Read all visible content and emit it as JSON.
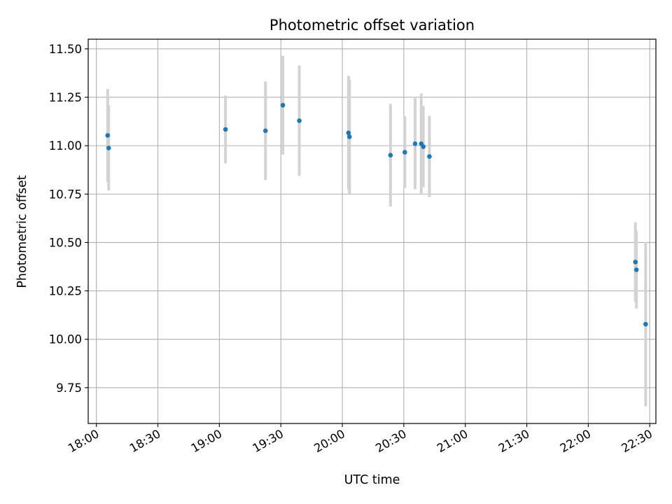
{
  "chart_data": {
    "type": "scatter",
    "title": "Photometric offset variation",
    "xlabel": "UTC time",
    "ylabel": "Photometric offset",
    "x_is_time": true,
    "xlim": [
      "17:56",
      "22:33"
    ],
    "ylim": [
      9.565,
      11.55
    ],
    "x_ticks": [
      "18:00",
      "18:30",
      "19:00",
      "19:30",
      "20:00",
      "20:30",
      "21:00",
      "21:30",
      "22:00",
      "22:30"
    ],
    "y_ticks": [
      9.75,
      10.0,
      10.25,
      10.5,
      10.75,
      11.0,
      11.25,
      11.5
    ],
    "y_tick_labels": [
      "9.75",
      "10.00",
      "10.25",
      "10.50",
      "10.75",
      "11.00",
      "11.25",
      "11.50"
    ],
    "grid": true,
    "point_color": "#1f77b4",
    "errorbar_color": "#d3d3d3",
    "points": [
      {
        "x": "18:05:30",
        "y": 11.053,
        "err": 0.24
      },
      {
        "x": "18:06:00",
        "y": 10.988,
        "err": 0.22
      },
      {
        "x": "19:03:00",
        "y": 11.084,
        "err": 0.175
      },
      {
        "x": "19:22:30",
        "y": 11.077,
        "err": 0.255
      },
      {
        "x": "19:31:00",
        "y": 11.209,
        "err": 0.255
      },
      {
        "x": "19:39:00",
        "y": 11.129,
        "err": 0.285
      },
      {
        "x": "20:03:00",
        "y": 11.066,
        "err": 0.295
      },
      {
        "x": "20:03:30",
        "y": 11.046,
        "err": 0.295
      },
      {
        "x": "20:23:30",
        "y": 10.951,
        "err": 0.265
      },
      {
        "x": "20:30:30",
        "y": 10.966,
        "err": 0.185
      },
      {
        "x": "20:35:30",
        "y": 11.01,
        "err": 0.235
      },
      {
        "x": "20:38:30",
        "y": 11.01,
        "err": 0.26
      },
      {
        "x": "20:39:30",
        "y": 10.995,
        "err": 0.21
      },
      {
        "x": "20:42:30",
        "y": 10.944,
        "err": 0.21
      },
      {
        "x": "22:23:00",
        "y": 10.399,
        "err": 0.205
      },
      {
        "x": "22:23:30",
        "y": 10.359,
        "err": 0.2
      },
      {
        "x": "22:28:00",
        "y": 10.078,
        "err": 0.425
      }
    ]
  }
}
